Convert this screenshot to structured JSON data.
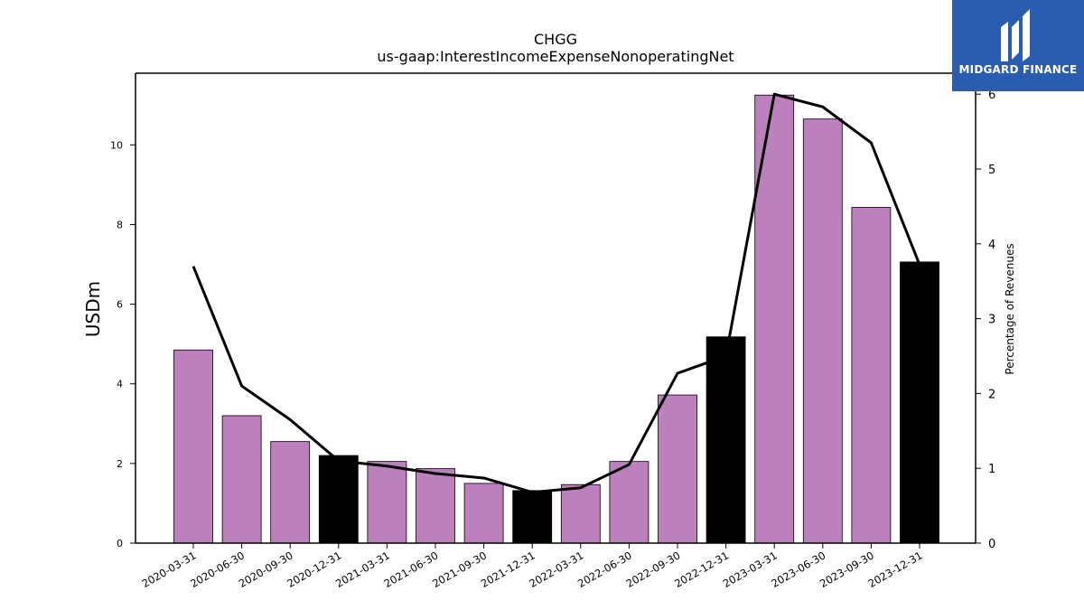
{
  "chart_data": {
    "type": "bar",
    "title": "CHGG",
    "subtitle": "us-gaap:InterestIncomeExpenseNonoperatingNet",
    "ylabel": "USDm",
    "y2label": "Percentage of Revenues",
    "ylim": [
      0,
      11.8
    ],
    "y2lim": [
      0,
      6.28
    ],
    "yticks": [
      0,
      2,
      4,
      6,
      8,
      10
    ],
    "y2ticks": [
      0,
      1,
      2,
      3,
      4,
      5,
      6
    ],
    "categories": [
      "2020-03-31",
      "2020-06-30",
      "2020-09-30",
      "2020-12-31",
      "2021-03-31",
      "2021-06-30",
      "2021-09-30",
      "2021-12-31",
      "2022-03-31",
      "2022-06-30",
      "2022-09-30",
      "2022-12-31",
      "2023-03-31",
      "2023-06-30",
      "2023-09-30",
      "2023-12-31"
    ],
    "series": [
      {
        "kind": "bar",
        "axis": "left",
        "values": [
          4.85,
          3.2,
          2.55,
          2.2,
          2.05,
          1.87,
          1.5,
          1.32,
          1.47,
          2.05,
          3.72,
          5.18,
          11.25,
          10.65,
          8.43,
          7.06
        ],
        "colors": [
          "#bc80bd",
          "#bc80bd",
          "#bc80bd",
          "#000000",
          "#bc80bd",
          "#bc80bd",
          "#bc80bd",
          "#000000",
          "#bc80bd",
          "#bc80bd",
          "#bc80bd",
          "#000000",
          "#bc80bd",
          "#bc80bd",
          "#bc80bd",
          "#000000"
        ]
      },
      {
        "kind": "line",
        "axis": "right",
        "color": "#000000",
        "values": [
          3.7,
          2.1,
          1.65,
          1.1,
          1.03,
          0.93,
          0.87,
          0.68,
          0.74,
          1.05,
          2.27,
          2.5,
          6.0,
          5.83,
          5.35,
          3.72
        ]
      }
    ]
  },
  "brand": {
    "name": "MIDGARD FINANCE",
    "color": "#2a5db0",
    "icon": "midgard-logo-icon"
  }
}
